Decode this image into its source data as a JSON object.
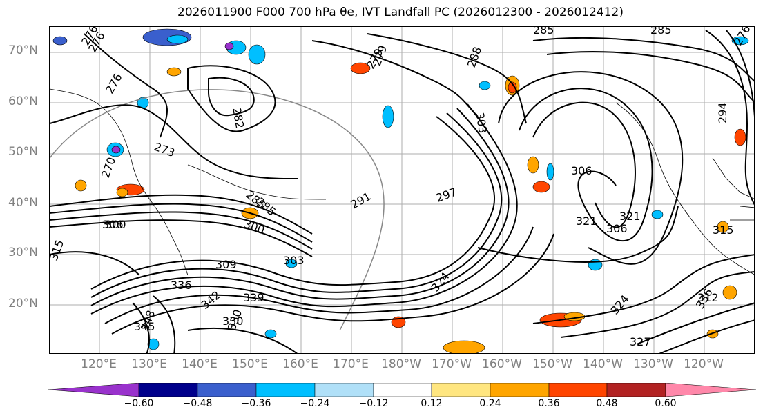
{
  "title": "2026011900 F000 700 hPa θe, IVT Landfall PC (2026012300 - 2026012412)",
  "map": {
    "lat_labels": [
      "70°N",
      "60°N",
      "50°N",
      "40°N",
      "30°N",
      "20°N"
    ],
    "lon_labels": [
      "120°E",
      "130°E",
      "140°E",
      "150°E",
      "160°E",
      "170°E",
      "180°W",
      "170°W",
      "160°W",
      "150°W",
      "140°W",
      "130°W",
      "120°W"
    ],
    "contour_labels": [
      "276",
      "276",
      "279",
      "279",
      "276",
      "282",
      "273",
      "270",
      "285",
      "288",
      "303",
      "306",
      "300",
      "297",
      "291",
      "285",
      "300",
      "303",
      "309",
      "306",
      "315",
      "336",
      "339",
      "342",
      "330",
      "324",
      "321",
      "315",
      "312",
      "336",
      "345",
      "348",
      "321",
      "294",
      "306",
      "276",
      "285",
      "285",
      "324",
      "327",
      "330"
    ]
  },
  "colorbar": {
    "tick_labels": [
      "−0.60",
      "−0.48",
      "−0.36",
      "−0.24",
      "−0.12",
      "0.12",
      "0.24",
      "0.36",
      "0.48",
      "0.60"
    ],
    "colors": [
      "#9932cc",
      "#00008b",
      "#3a5fcd",
      "#00bfff",
      "#b0e0f8",
      "#ffffff",
      "#ffe680",
      "#ffa500",
      "#ff4500",
      "#b22222",
      "#ff88aa"
    ]
  }
}
